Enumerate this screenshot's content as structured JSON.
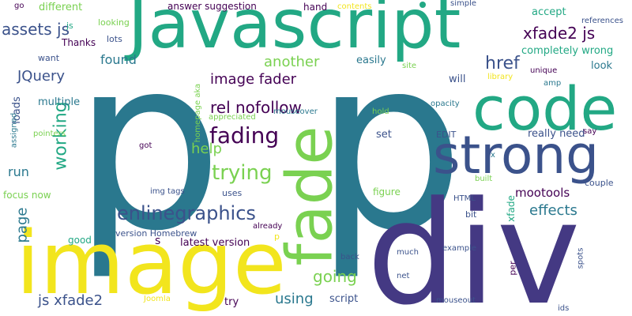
{
  "background": "#ffffff",
  "palette": {
    "yellow": "#f2e51d",
    "light_green": "#7ad151",
    "green": "#22a884",
    "teal": "#2a788e",
    "blue": "#3b528b",
    "purple": "#440154",
    "indigo": "#443983"
  },
  "words": [
    {
      "text": "p",
      "color": "#2a788e"
    },
    {
      "text": "p",
      "color": "#2a788e"
    },
    {
      "text": "Javascript",
      "color": "#22a884"
    },
    {
      "text": "image",
      "color": "#f2e51d"
    },
    {
      "text": "div",
      "color": "#443983"
    },
    {
      "text": "code",
      "color": "#22a884"
    },
    {
      "text": "strong",
      "color": "#3b528b"
    },
    {
      "text": "fade",
      "color": "#7ad151"
    },
    {
      "text": "enlinegraphics",
      "color": "#3b528b"
    },
    {
      "text": "fading",
      "color": "#440154"
    },
    {
      "text": "trying",
      "color": "#7ad151"
    },
    {
      "text": "working",
      "color": "#22a884"
    },
    {
      "text": "image fader",
      "color": "#440154"
    },
    {
      "text": "rel nofollow",
      "color": "#440154"
    },
    {
      "text": "assets js",
      "color": "#3b528b"
    },
    {
      "text": "xfade2 js",
      "color": "#440154"
    },
    {
      "text": "another",
      "color": "#7ad151"
    },
    {
      "text": "href",
      "color": "#3b528b"
    },
    {
      "text": "effects",
      "color": "#2a788e"
    },
    {
      "text": "going",
      "color": "#7ad151"
    },
    {
      "text": "using",
      "color": "#2a788e"
    },
    {
      "text": "help",
      "color": "#7ad151"
    },
    {
      "text": "js xfade2",
      "color": "#3b528b"
    },
    {
      "text": "page",
      "color": "#2a788e"
    },
    {
      "text": "JQuery",
      "color": "#3b528b"
    },
    {
      "text": "found",
      "color": "#2a788e"
    },
    {
      "text": "run",
      "color": "#2a788e"
    },
    {
      "text": "mootools",
      "color": "#440154"
    },
    {
      "text": "answer suggestion",
      "color": "#440154"
    },
    {
      "text": "different",
      "color": "#7ad151"
    },
    {
      "text": "hand",
      "color": "#440154"
    },
    {
      "text": "accept",
      "color": "#22a884"
    },
    {
      "text": "completely wrong",
      "color": "#22a884"
    },
    {
      "text": "look",
      "color": "#2a788e"
    },
    {
      "text": "easily",
      "color": "#2a788e"
    },
    {
      "text": "will",
      "color": "#3b528b"
    },
    {
      "text": "really need",
      "color": "#3b528b"
    },
    {
      "text": "couple",
      "color": "#3b528b"
    },
    {
      "text": "multiple",
      "color": "#2a788e"
    },
    {
      "text": "loads",
      "color": "#3b528b"
    },
    {
      "text": "Thanks",
      "color": "#440154"
    },
    {
      "text": "want",
      "color": "#3b528b"
    },
    {
      "text": "lots",
      "color": "#3b528b"
    },
    {
      "text": "looking",
      "color": "#7ad151"
    },
    {
      "text": "contents",
      "color": "#f2e51d"
    },
    {
      "text": "simple",
      "color": "#3b528b"
    },
    {
      "text": "references",
      "color": "#3b528b"
    },
    {
      "text": "go",
      "color": "#440154"
    },
    {
      "text": "library",
      "color": "#f2e51d"
    },
    {
      "text": "unique",
      "color": "#440154"
    },
    {
      "text": "amp",
      "color": "#2a788e"
    },
    {
      "text": "site",
      "color": "#7ad151"
    },
    {
      "text": "opacity",
      "color": "#2a788e"
    },
    {
      "text": "hold",
      "color": "#7ad151"
    },
    {
      "text": "set",
      "color": "#3b528b"
    },
    {
      "text": "EDIT",
      "color": "#3b528b"
    },
    {
      "text": "say",
      "color": "#440154"
    },
    {
      "text": "mouseover",
      "color": "#2a788e"
    },
    {
      "text": "appreciated",
      "color": "#7ad151"
    },
    {
      "text": "homepage aka",
      "color": "#7ad151"
    },
    {
      "text": "got",
      "color": "#440154"
    },
    {
      "text": "pointers",
      "color": "#7ad151"
    },
    {
      "text": "assigned",
      "color": "#2a788e"
    },
    {
      "text": "focus now",
      "color": "#7ad151"
    },
    {
      "text": "img tags",
      "color": "#3b528b"
    },
    {
      "text": "uses",
      "color": "#3b528b"
    },
    {
      "text": "figure",
      "color": "#7ad151"
    },
    {
      "text": "built",
      "color": "#7ad151"
    },
    {
      "text": "x",
      "color": "#2a788e"
    },
    {
      "text": "xfade",
      "color": "#22a884"
    },
    {
      "text": "HTML",
      "color": "#3b528b"
    },
    {
      "text": "bit",
      "color": "#3b528b"
    },
    {
      "text": "version Homebrew",
      "color": "#3b528b"
    },
    {
      "text": "already",
      "color": "#440154"
    },
    {
      "text": "latest version",
      "color": "#440154"
    },
    {
      "text": "s",
      "color": "#440154"
    },
    {
      "text": "good",
      "color": "#22a884"
    },
    {
      "text": "p",
      "color": "#f2e51d"
    },
    {
      "text": "much",
      "color": "#3b528b"
    },
    {
      "text": "example",
      "color": "#3b528b"
    },
    {
      "text": "spots",
      "color": "#3b528b"
    },
    {
      "text": "per",
      "color": "#440154"
    },
    {
      "text": "back",
      "color": "#3b528b"
    },
    {
      "text": "net",
      "color": "#3b528b"
    },
    {
      "text": "script",
      "color": "#3b528b"
    },
    {
      "text": "try",
      "color": "#440154"
    },
    {
      "text": "Joomla",
      "color": "#f2e51d"
    },
    {
      "text": "mouseout",
      "color": "#3b528b"
    },
    {
      "text": "ids",
      "color": "#3b528b"
    },
    {
      "text": "js",
      "color": "#22a884"
    }
  ]
}
